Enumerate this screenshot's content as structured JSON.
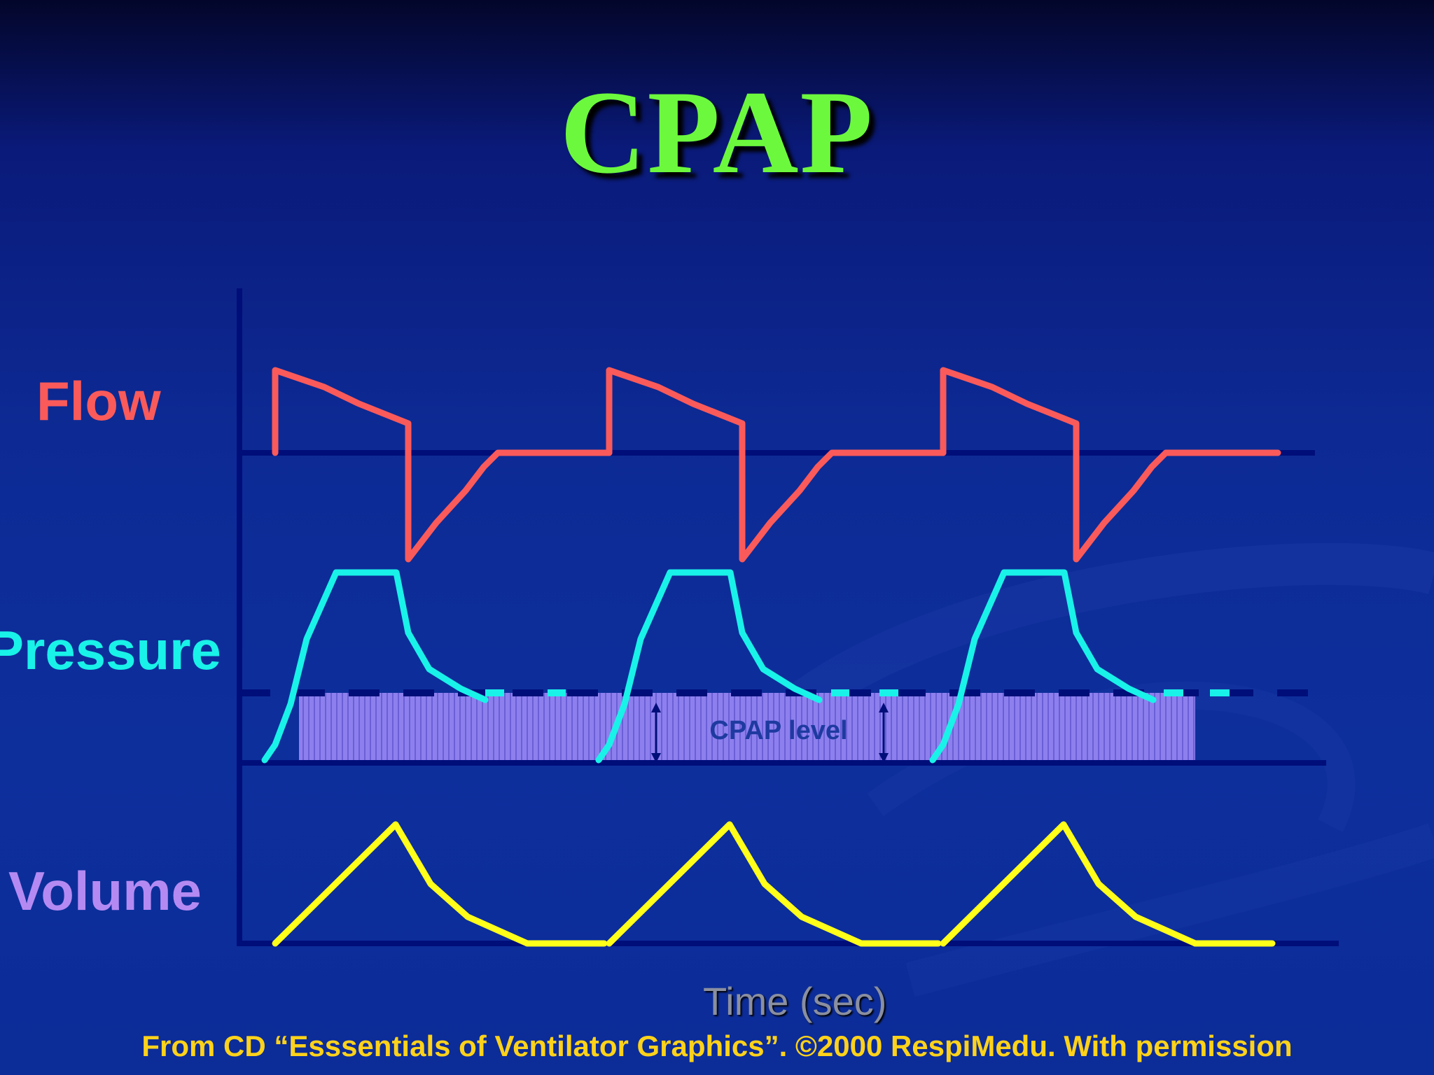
{
  "title": "CPAP",
  "labels": {
    "flow": "Flow",
    "pressure": "Pressure",
    "volume": "Volume",
    "cpap_level": "CPAP level",
    "time": "Time (sec)"
  },
  "footer": "From CD “Esssentials of Ventilator Graphics”. ©2000 RespiMedu.  With permission",
  "colors": {
    "title": "#6cf93d",
    "flow": "#fa5a5a",
    "pressure": "#19f2e8",
    "volume": "#ffff1a",
    "cpap_fill": "#8d80ee",
    "axis": "#000e7a",
    "footer": "#ffd21a"
  },
  "breaths": 3
}
